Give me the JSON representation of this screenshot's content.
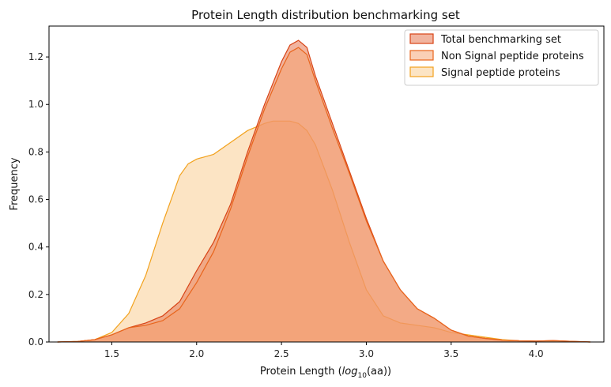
{
  "chart_data": {
    "type": "area",
    "title": "Protein Length distribution benchmarking set",
    "xlabel_prefix": "Protein Length (",
    "xlabel_math": "log",
    "xlabel_sub": "10",
    "xlabel_suffix": "(aa))",
    "ylabel": "Frequency",
    "xlim": [
      1.13,
      4.4
    ],
    "ylim": [
      0.0,
      1.33
    ],
    "xticks": [
      1.5,
      2.0,
      2.5,
      3.0,
      3.5,
      4.0
    ],
    "xtick_labels": [
      "1.5",
      "2.0",
      "2.5",
      "3.0",
      "3.5",
      "4.0"
    ],
    "yticks": [
      0.0,
      0.2,
      0.4,
      0.6,
      0.8,
      1.0,
      1.2
    ],
    "ytick_labels": [
      "0.0",
      "0.2",
      "0.4",
      "0.6",
      "0.8",
      "1.0",
      "1.2"
    ],
    "grid": false,
    "legend_position": "top-right",
    "series": [
      {
        "name": "Total benchmarking set",
        "fill": "#e8825f",
        "fill_opacity": 0.6,
        "stroke": "#d84315",
        "x": [
          1.18,
          1.3,
          1.4,
          1.5,
          1.6,
          1.7,
          1.8,
          1.9,
          2.0,
          2.1,
          2.2,
          2.3,
          2.4,
          2.5,
          2.55,
          2.6,
          2.65,
          2.7,
          2.8,
          2.9,
          3.0,
          3.1,
          3.2,
          3.3,
          3.4,
          3.5,
          3.6,
          3.7,
          3.8,
          3.9,
          4.0,
          4.1,
          4.2,
          4.32
        ],
        "y": [
          0.0,
          0.002,
          0.01,
          0.03,
          0.06,
          0.08,
          0.11,
          0.17,
          0.3,
          0.42,
          0.58,
          0.8,
          1.0,
          1.18,
          1.25,
          1.27,
          1.24,
          1.12,
          0.92,
          0.72,
          0.52,
          0.34,
          0.22,
          0.14,
          0.1,
          0.05,
          0.025,
          0.015,
          0.008,
          0.005,
          0.004,
          0.006,
          0.003,
          0.0
        ]
      },
      {
        "name": "Non Signal peptide proteins",
        "fill": "#f6a06e",
        "fill_opacity": 0.5,
        "stroke": "#e8651c",
        "x": [
          1.18,
          1.3,
          1.4,
          1.5,
          1.6,
          1.7,
          1.8,
          1.9,
          2.0,
          2.1,
          2.2,
          2.3,
          2.4,
          2.5,
          2.55,
          2.6,
          2.65,
          2.7,
          2.8,
          2.9,
          3.0,
          3.1,
          3.2,
          3.3,
          3.4,
          3.5,
          3.6,
          3.7,
          3.8,
          3.9,
          4.0,
          4.1,
          4.2,
          4.32
        ],
        "y": [
          0.0,
          0.002,
          0.01,
          0.03,
          0.06,
          0.07,
          0.09,
          0.14,
          0.25,
          0.38,
          0.56,
          0.78,
          0.98,
          1.15,
          1.22,
          1.24,
          1.21,
          1.1,
          0.9,
          0.71,
          0.51,
          0.34,
          0.22,
          0.14,
          0.1,
          0.05,
          0.025,
          0.015,
          0.008,
          0.005,
          0.004,
          0.006,
          0.003,
          0.0
        ]
      },
      {
        "name": "Signal peptide proteins",
        "fill": "#f9c98a",
        "fill_opacity": 0.5,
        "stroke": "#f2a21e",
        "x": [
          1.18,
          1.3,
          1.4,
          1.5,
          1.6,
          1.7,
          1.8,
          1.9,
          1.95,
          2.0,
          2.1,
          2.2,
          2.3,
          2.4,
          2.45,
          2.5,
          2.55,
          2.6,
          2.65,
          2.7,
          2.8,
          2.9,
          3.0,
          3.1,
          3.2,
          3.3,
          3.4,
          3.5,
          3.6,
          3.7,
          3.8,
          3.9,
          4.0,
          4.1,
          4.2,
          4.32
        ],
        "y": [
          0.0,
          0.002,
          0.01,
          0.04,
          0.12,
          0.28,
          0.5,
          0.7,
          0.75,
          0.77,
          0.79,
          0.84,
          0.89,
          0.92,
          0.93,
          0.93,
          0.93,
          0.92,
          0.89,
          0.83,
          0.64,
          0.42,
          0.22,
          0.11,
          0.08,
          0.07,
          0.06,
          0.04,
          0.03,
          0.02,
          0.01,
          0.005,
          0.003,
          0.003,
          0.002,
          0.0
        ]
      }
    ]
  }
}
